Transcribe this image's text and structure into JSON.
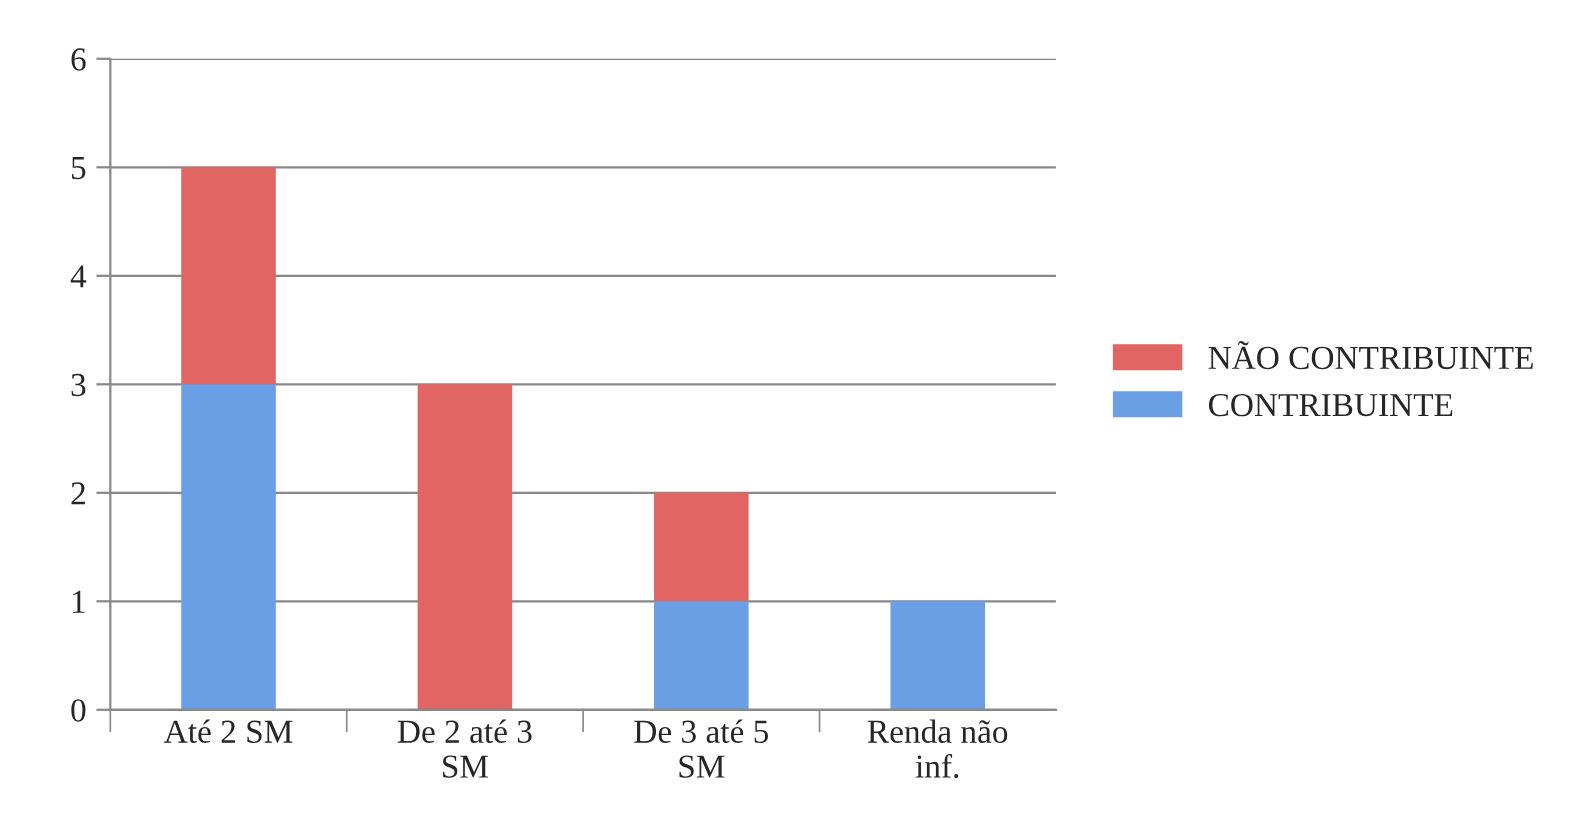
{
  "chart_data": {
    "type": "bar",
    "stacked": true,
    "categories": [
      "Até 2 SM",
      "De 2 até 3 SM",
      "De 3 até 5 SM",
      "Renda não inf."
    ],
    "series": [
      {
        "name": "CONTRIBUINTE",
        "color": "#6a9fe6",
        "values": [
          3,
          0,
          1,
          1
        ]
      },
      {
        "name": "NÃO CONTRIBUINTE",
        "color": "#e06563",
        "values": [
          2,
          3,
          1,
          0
        ]
      }
    ],
    "ylim": [
      0,
      6
    ],
    "yticks": [
      0,
      1,
      2,
      3,
      4,
      5,
      6
    ],
    "grid": "y",
    "legend": "right"
  }
}
